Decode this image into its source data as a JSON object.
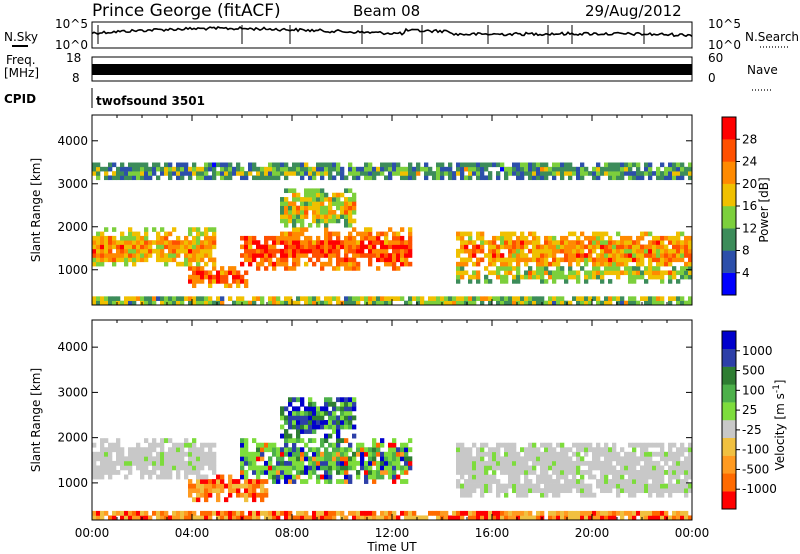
{
  "header": {
    "station": "Prince George (fitACF)",
    "beam": "Beam 08",
    "date": "29/Aug/2012"
  },
  "noise_panel": {
    "left_label": "N.Sky",
    "right_label": "N.Search",
    "left_ticks": [
      "10^5",
      "10^0"
    ],
    "right_ticks": [
      "10^5",
      "10^0"
    ],
    "line_color": "#000000"
  },
  "freq_panel": {
    "left_label_top": "Freq.",
    "left_label_unit": "[MHz]",
    "left_ticks": [
      "18",
      "8"
    ],
    "right_label": "Nave",
    "right_ticks": [
      "60",
      "0"
    ]
  },
  "cpid_panel": {
    "label": "CPID",
    "program": "twofsound 3501"
  },
  "chart_data": [
    {
      "type": "heatmap",
      "name": "power",
      "ylabel": "Slant Range [km]",
      "xlabel": "",
      "x_range_hours": [
        0,
        24
      ],
      "ylim": [
        180,
        4600
      ],
      "yticks": [
        1000,
        2000,
        3000,
        4000
      ],
      "ytick_labels": [
        "1000",
        "2000",
        "3000",
        "4000"
      ],
      "colorbar": {
        "label": "Power [dB]",
        "ticks": [
          "4",
          "8",
          "12",
          "16",
          "20",
          "24",
          "28"
        ],
        "colors": [
          "#0000ff",
          "#2c4faa",
          "#3c8c5a",
          "#7ccf3c",
          "#f0c000",
          "#ff8a00",
          "#ff5000",
          "#ff0000"
        ]
      },
      "echo_bands": [
        {
          "start_h": 0.0,
          "end_h": 5.0,
          "center_km": 1500,
          "width_km": 900,
          "level": 0.55
        },
        {
          "start_h": 3.8,
          "end_h": 6.2,
          "center_km": 850,
          "width_km": 450,
          "level": 0.8
        },
        {
          "start_h": 6.0,
          "end_h": 12.8,
          "center_km": 1450,
          "width_km": 1000,
          "level": 0.8
        },
        {
          "start_h": 7.5,
          "end_h": 10.5,
          "center_km": 2450,
          "width_km": 900,
          "level": 0.4
        },
        {
          "start_h": 14.5,
          "end_h": 24.0,
          "center_km": 1450,
          "width_km": 950,
          "level": 0.6
        },
        {
          "start_h": 14.5,
          "end_h": 24.0,
          "center_km": 900,
          "width_km": 350,
          "level": 0.35
        },
        {
          "start_h": 0.0,
          "end_h": 24.0,
          "center_km": 280,
          "width_km": 300,
          "level": 0.3
        },
        {
          "start_h": 0.0,
          "end_h": 24.0,
          "center_km": 3300,
          "width_km": 450,
          "level": 0.15
        }
      ]
    },
    {
      "type": "heatmap",
      "name": "velocity",
      "ylabel": "Slant Range [km]",
      "xlabel": "Time UT",
      "x_range_hours": [
        0,
        24
      ],
      "xtick_labels": [
        "00:00",
        "04:00",
        "08:00",
        "12:00",
        "16:00",
        "20:00",
        "00:00"
      ],
      "ylim": [
        180,
        4600
      ],
      "yticks": [
        1000,
        2000,
        3000,
        4000
      ],
      "ytick_labels": [
        "1000",
        "2000",
        "3000",
        "4000"
      ],
      "colorbar": {
        "label": "Velocity [m s^-1]",
        "ticks": [
          "1000",
          "500",
          "100",
          "25",
          "-25",
          "-100",
          "-500",
          "-1000"
        ],
        "colors": [
          "#0000cc",
          "#2d3fa8",
          "#2e7d32",
          "#4cb04a",
          "#7ddc3c",
          "#c8c8c8",
          "#f0c040",
          "#ff9a20",
          "#ff6a00",
          "#ff0000"
        ]
      },
      "echo_bands": [
        {
          "start_h": 0.0,
          "end_h": 5.0,
          "center_km": 1500,
          "width_km": 900,
          "class": "ground"
        },
        {
          "start_h": 3.8,
          "end_h": 7.0,
          "center_km": 900,
          "width_km": 550,
          "class": "negative"
        },
        {
          "start_h": 6.0,
          "end_h": 12.8,
          "center_km": 1450,
          "width_km": 1000,
          "class": "mixed"
        },
        {
          "start_h": 7.5,
          "end_h": 10.5,
          "center_km": 2450,
          "width_km": 900,
          "class": "positive"
        },
        {
          "start_h": 14.5,
          "end_h": 24.0,
          "center_km": 1450,
          "width_km": 950,
          "class": "ground"
        },
        {
          "start_h": 14.5,
          "end_h": 24.0,
          "center_km": 900,
          "width_km": 350,
          "class": "ground"
        },
        {
          "start_h": 0.0,
          "end_h": 24.0,
          "center_km": 280,
          "width_km": 300,
          "class": "negative"
        }
      ]
    }
  ]
}
